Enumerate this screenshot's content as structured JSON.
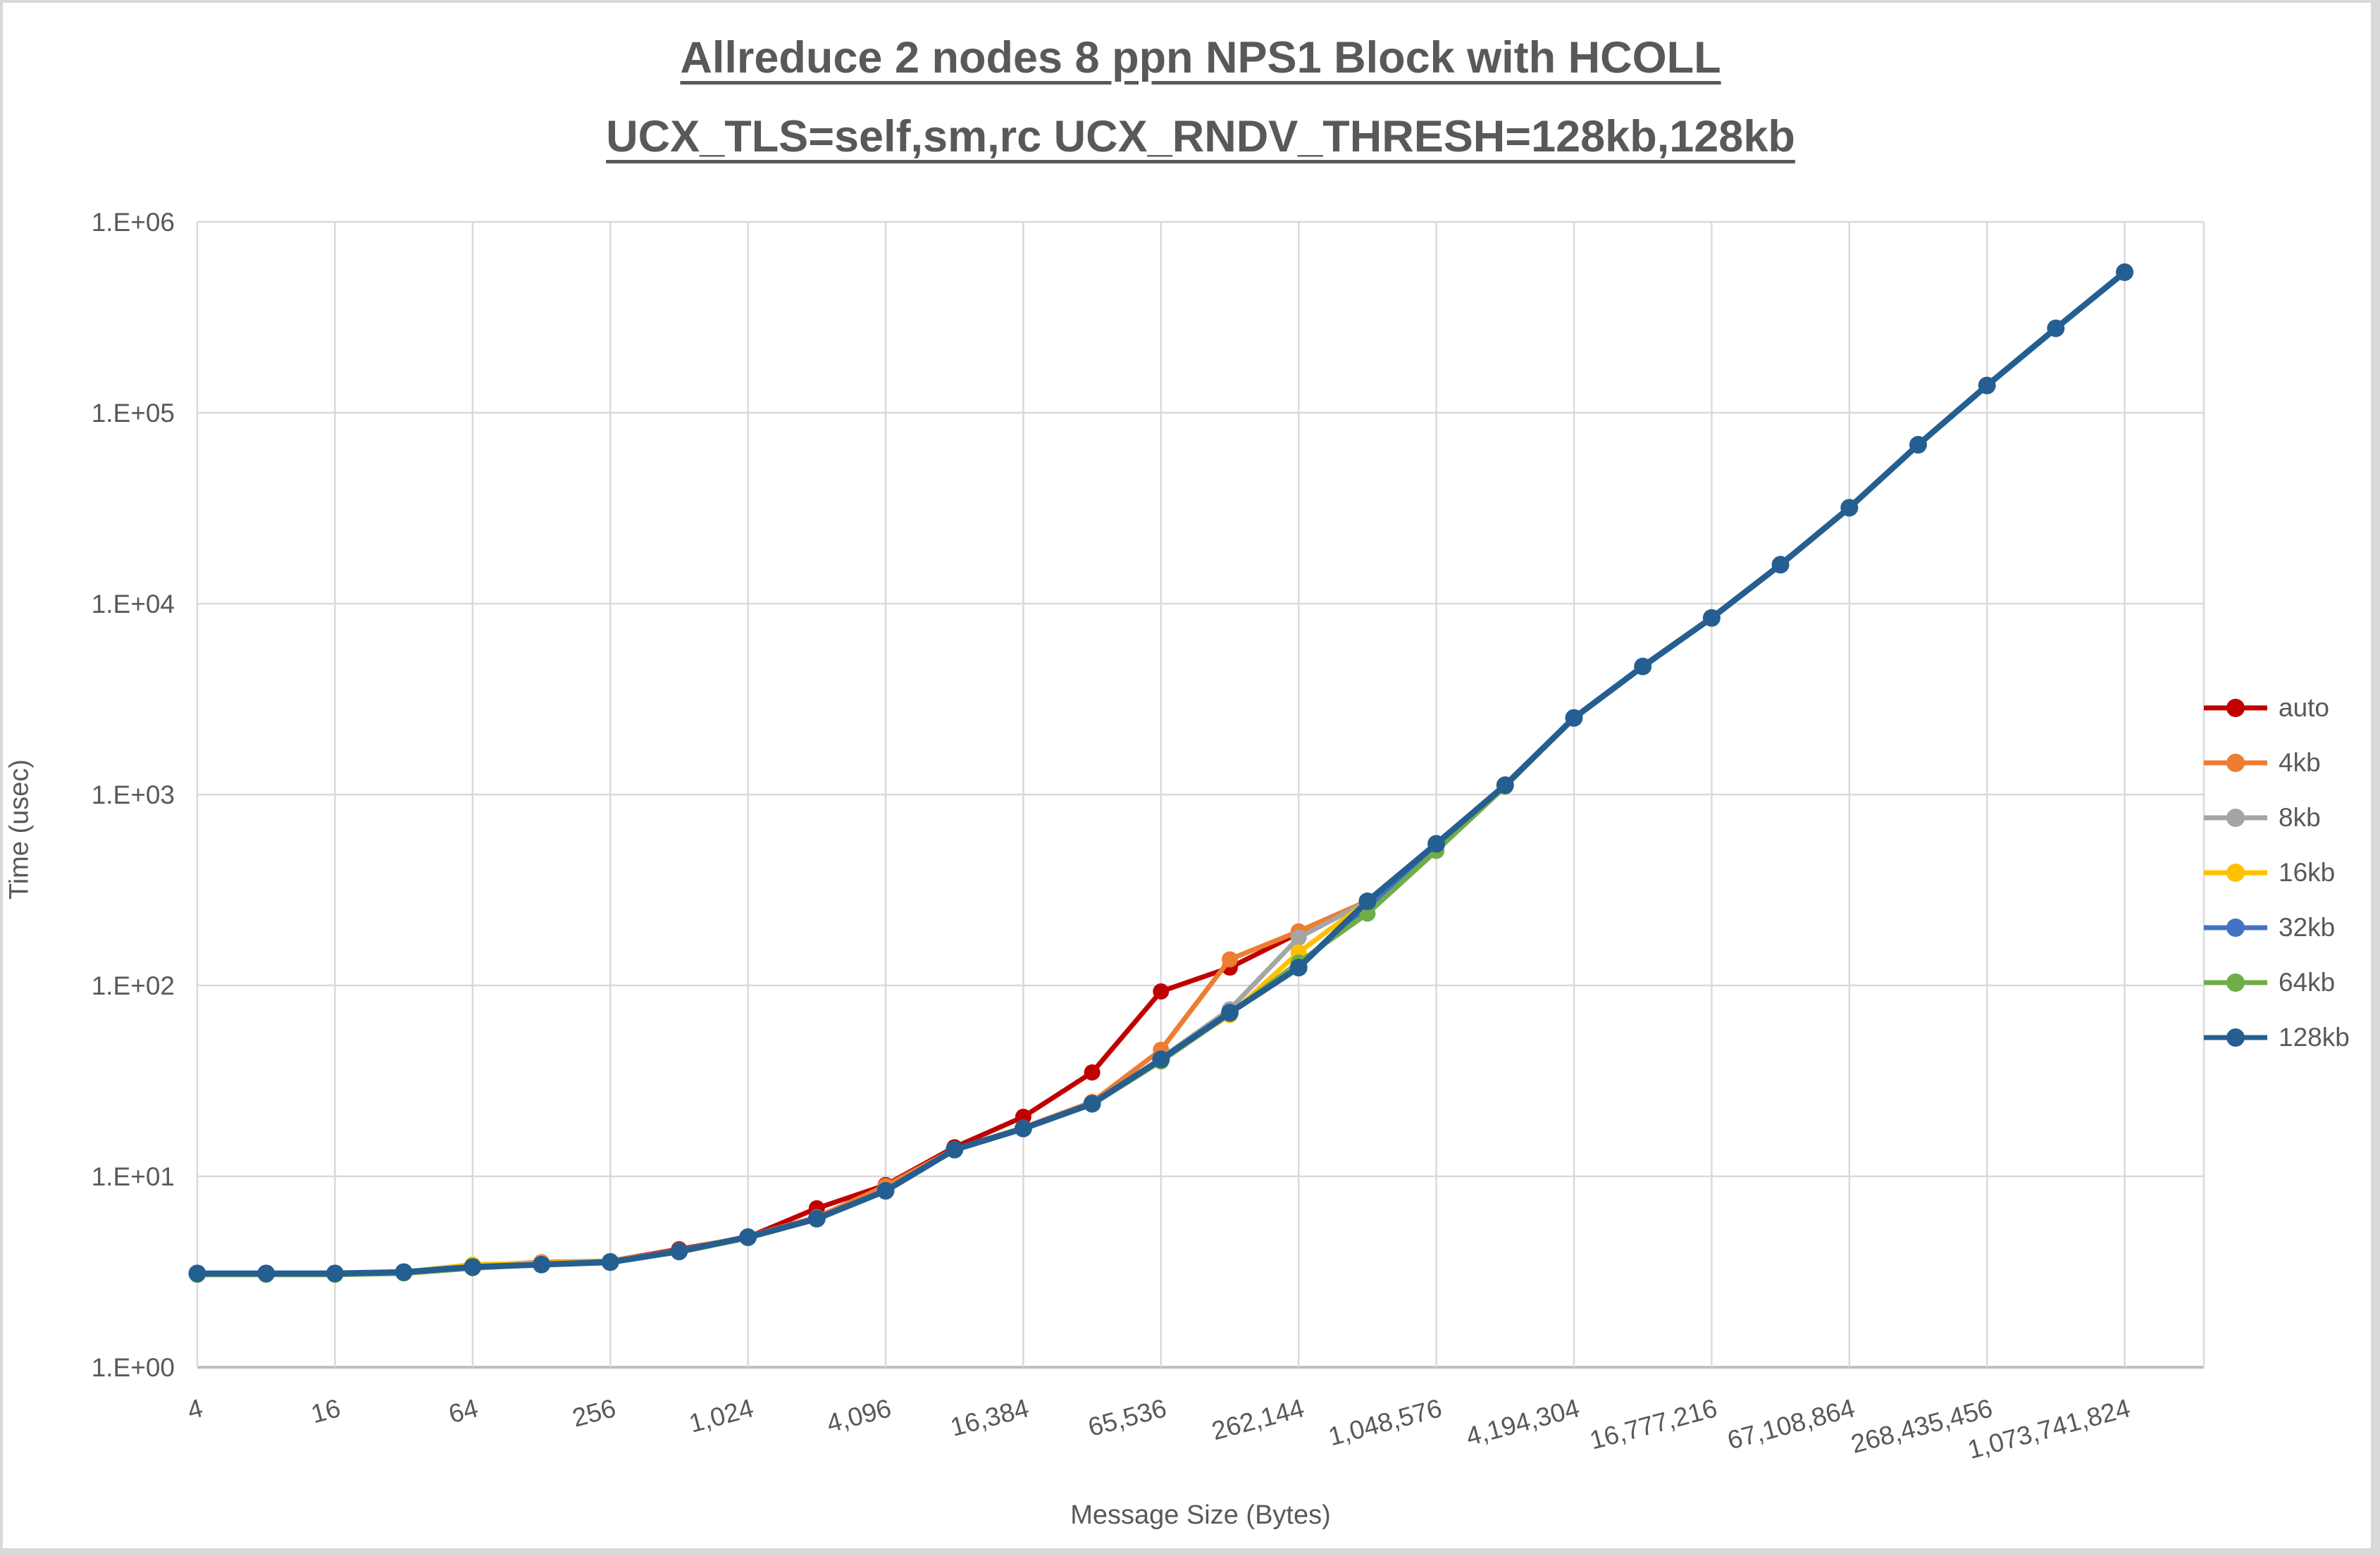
{
  "title": {
    "line1": "Allreduce 2 nodes 8 ppn NPS1 Block with HCOLL",
    "line2": "UCX_TLS=self,sm,rc UCX_RNDV_THRESH=128kb,128kb"
  },
  "axes": {
    "x_title": "Message Size (Bytes)",
    "y_title": "Time (usec)",
    "y_tick_labels": [
      "1.E+00",
      "1.E+01",
      "1.E+02",
      "1.E+03",
      "1.E+04",
      "1.E+05",
      "1.E+06"
    ],
    "x_tick_labels": [
      "4",
      "16",
      "64",
      "256",
      "1,024",
      "4,096",
      "16,384",
      "65,536",
      "262,144",
      "1,048,576",
      "4,194,304",
      "16,777,216",
      "67,108,864",
      "268,435,456",
      "1,073,741,824"
    ]
  },
  "colors": {
    "text": "#595959",
    "gridline": "#d9d9d9",
    "axis_line": "#bfbfbf",
    "background": "#ffffff",
    "frame": "#d9d9d9"
  },
  "chart_data": {
    "type": "line",
    "title": "Allreduce 2 nodes 8 ppn NPS1 Block with HCOLL UCX_TLS=self,sm,rc UCX_RNDV_THRESH=128kb,128kb",
    "xlabel": "Message Size (Bytes)",
    "ylabel": "Time (usec)",
    "x_scale": "log2",
    "y_scale": "log10",
    "ylim": [
      1,
      1000000
    ],
    "grid": true,
    "legend_position": "right",
    "x": [
      4,
      8,
      16,
      32,
      64,
      128,
      256,
      512,
      1024,
      2048,
      4096,
      8192,
      16384,
      32768,
      65536,
      131072,
      262144,
      524288,
      1048576,
      2097152,
      4194304,
      8388608,
      16777216,
      33554432,
      67108864,
      134217728,
      268435456,
      536870912,
      1073741824
    ],
    "x_ticks_labeled": [
      4,
      16,
      64,
      256,
      1024,
      4096,
      16384,
      65536,
      262144,
      1048576,
      4194304,
      16777216,
      67108864,
      268435456,
      1073741824
    ],
    "series": [
      {
        "name": "auto",
        "color": "#C00000",
        "values": [
          3.1,
          3.1,
          3.1,
          3.15,
          3.35,
          3.5,
          3.6,
          4.15,
          4.8,
          6.8,
          9.0,
          14.2,
          20.5,
          35,
          93,
          124,
          188,
          277,
          554,
          1120,
          2520,
          4690,
          8420,
          16000,
          31800,
          68000,
          139000,
          277000,
          545000
        ]
      },
      {
        "name": "4kb",
        "color": "#ED7D31",
        "values": [
          3.1,
          3.1,
          3.1,
          3.15,
          3.4,
          3.55,
          3.6,
          4.1,
          4.85,
          6.1,
          8.9,
          13.9,
          18.0,
          24.5,
          46,
          137,
          192,
          277,
          553,
          1120,
          2520,
          4690,
          8420,
          16000,
          31800,
          68000,
          139000,
          277000,
          545000
        ]
      },
      {
        "name": "8kb",
        "color": "#A5A5A5",
        "values": [
          3.1,
          3.1,
          3.1,
          3.15,
          3.35,
          3.5,
          3.55,
          4.05,
          4.8,
          6.0,
          8.5,
          13.8,
          17.9,
          24,
          41.5,
          75,
          178,
          276,
          551,
          1120,
          2520,
          4690,
          8420,
          16000,
          31800,
          68000,
          139000,
          277000,
          545000
        ]
      },
      {
        "name": "16kb",
        "color": "#FFC000",
        "values": [
          3.1,
          3.1,
          3.1,
          3.15,
          3.45,
          3.5,
          3.6,
          4.05,
          4.8,
          6.0,
          8.4,
          13.8,
          17.8,
          24,
          41,
          70,
          149,
          275,
          550,
          1120,
          2520,
          4690,
          8420,
          16000,
          31800,
          68000,
          139000,
          277000,
          545000
        ]
      },
      {
        "name": "32kb",
        "color": "#4472C4",
        "values": [
          3.1,
          3.1,
          3.1,
          3.15,
          3.35,
          3.45,
          3.55,
          4.05,
          4.8,
          6.0,
          8.4,
          13.8,
          17.8,
          24,
          40.5,
          72,
          126,
          258,
          538,
          1115,
          2515,
          4690,
          8420,
          16000,
          31800,
          68000,
          139000,
          277000,
          545000
        ]
      },
      {
        "name": "64kb",
        "color": "#70AD47",
        "values": [
          3.05,
          3.05,
          3.05,
          3.1,
          3.3,
          3.45,
          3.6,
          4.0,
          4.75,
          5.95,
          8.35,
          13.7,
          17.7,
          23.8,
          40,
          71,
          132,
          238,
          507,
          1100,
          2510,
          4680,
          8410,
          15900,
          31700,
          67800,
          138700,
          276300,
          544000
        ]
      },
      {
        "name": "128kb",
        "color": "#255E91",
        "values": [
          3.1,
          3.1,
          3.1,
          3.15,
          3.35,
          3.45,
          3.55,
          4.05,
          4.8,
          6.0,
          8.4,
          13.8,
          17.8,
          24,
          41,
          72,
          124,
          276,
          552,
          1120,
          2520,
          4690,
          8420,
          16000,
          31800,
          68000,
          139000,
          277000,
          545000
        ]
      }
    ]
  },
  "legend": {
    "items": [
      {
        "label": "auto",
        "color": "#C00000"
      },
      {
        "label": "4kb",
        "color": "#ED7D31"
      },
      {
        "label": "8kb",
        "color": "#A5A5A5"
      },
      {
        "label": "16kb",
        "color": "#FFC000"
      },
      {
        "label": "32kb",
        "color": "#4472C4"
      },
      {
        "label": "64kb",
        "color": "#70AD47"
      },
      {
        "label": "128kb",
        "color": "#255E91"
      }
    ]
  }
}
